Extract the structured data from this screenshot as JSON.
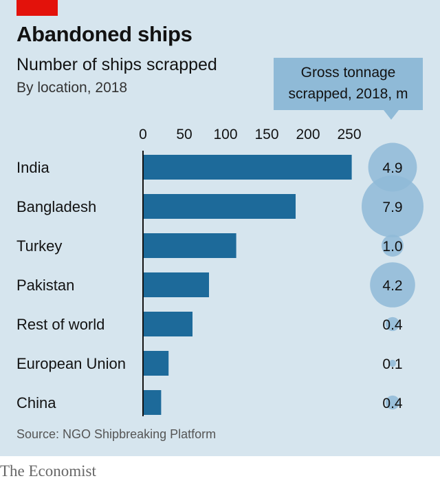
{
  "brand_block_color": "#e3120b",
  "title": "Abandoned ships",
  "subtitle": "Number of ships scrapped",
  "subsubtitle": "By location, 2018",
  "callout": "Gross tonnage\nscrapped, 2018, m",
  "source": "Source: NGO Shipbreaking Platform",
  "brand": "The Economist",
  "colors": {
    "bar": "#1d6a9a",
    "bubble": "#8fbad7",
    "panel": "#d6e5ee"
  },
  "chart_data": [
    {
      "type": "bar",
      "orientation": "horizontal",
      "title": "Number of ships scrapped",
      "subtitle": "By location, 2018",
      "categories": [
        "India",
        "Bangladesh",
        "Turkey",
        "Pakistan",
        "Rest of world",
        "European Union",
        "China"
      ],
      "values": [
        253,
        185,
        113,
        80,
        60,
        31,
        22
      ],
      "xlim": [
        0,
        250
      ],
      "xticks": [
        0,
        50,
        100,
        150,
        200,
        250
      ],
      "xaxis_position": "top",
      "grid": false
    },
    {
      "type": "bubble",
      "title": "Gross tonnage scrapped, 2018, m",
      "categories": [
        "India",
        "Bangladesh",
        "Turkey",
        "Pakistan",
        "Rest of world",
        "European Union",
        "China"
      ],
      "values": [
        4.9,
        7.9,
        1.0,
        4.2,
        0.4,
        0.1,
        0.4
      ],
      "labels": [
        "4.9",
        "7.9",
        "1.0",
        "4.2",
        "0.4",
        "0.1",
        "0.4"
      ]
    }
  ]
}
